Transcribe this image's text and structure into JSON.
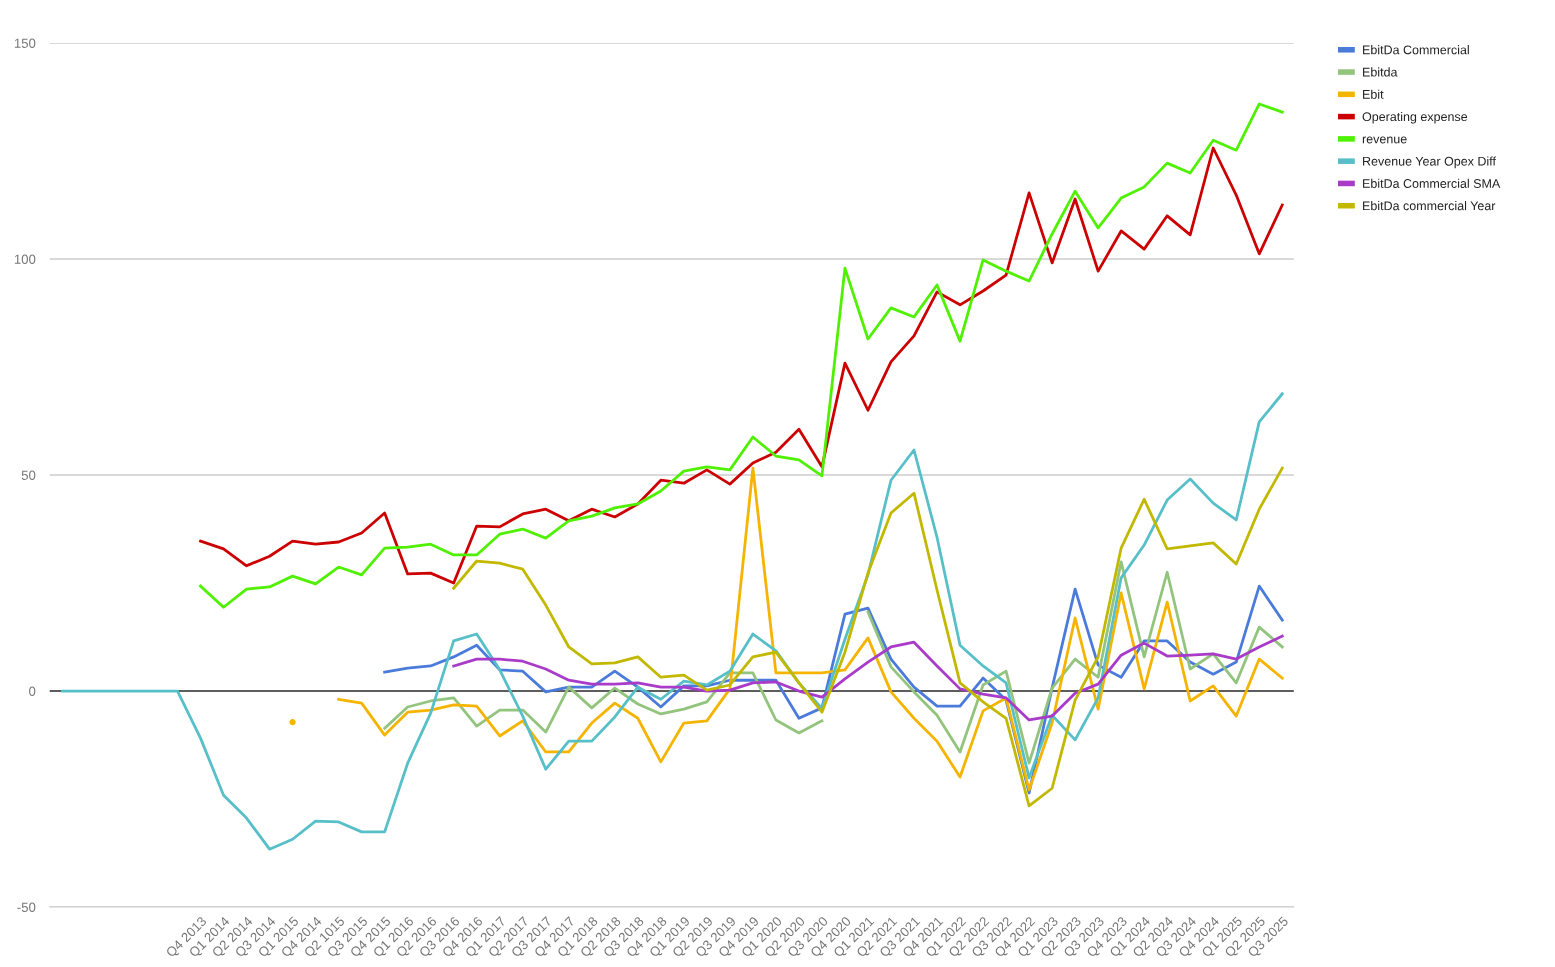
{
  "chart_data": {
    "type": "line",
    "categories": [
      null,
      null,
      null,
      null,
      null,
      null,
      "Q4 2013",
      "Q1 2014",
      "Q2 2014",
      "Q3 2014",
      "Q1 2015",
      "Q4 2014",
      "Q2 1015",
      "Q3 2015",
      "Q4 2015",
      "Q1 2016",
      "Q2 2016",
      "Q3 2016",
      "Q4 2016",
      "Q1 2017",
      "Q2 2017",
      "Q3 2017",
      "Q4 2017",
      "Q1 2018",
      "Q2 2018",
      "Q3 2018",
      "Q4 2018",
      "Q1 2019",
      "Q2 2019",
      "Q3 2019",
      "Q4 2019",
      "Q1 2020",
      "Q2 2020",
      "Q3 2020",
      "Q4 2020",
      "Q1 2021",
      "Q2 2021",
      "Q3 2021",
      "Q4 2021",
      "Q1 2022",
      "Q2 2022",
      "Q3 2022",
      "Q4 2022",
      "Q1 2023",
      "Q2 2023",
      "Q3 2023",
      "Q4 2023",
      "Q1 2024",
      "Q2 2024",
      "Q3 2024",
      "Q4 2024",
      "Q1 2025",
      "Q2 2025",
      "Q3 2025"
    ],
    "series": [
      {
        "name": "EbitDa Commercial",
        "color": "#4a7bdb",
        "values": [
          null,
          null,
          null,
          null,
          null,
          null,
          null,
          null,
          null,
          null,
          null,
          null,
          null,
          null,
          4.4,
          5.3,
          5.8,
          7.9,
          10.6,
          4.9,
          4.6,
          -0.2,
          0.9,
          0.9,
          4.6,
          0.9,
          -3.7,
          1.2,
          1.2,
          2.5,
          2.5,
          2.5,
          -6.3,
          -3.9,
          17.8,
          19.2,
          7.4,
          0.9,
          -3.5,
          -3.5,
          3,
          -2.1,
          -23.6,
          0.7,
          23.6,
          6,
          3.2,
          11.6,
          11.6,
          6.7,
          3.9,
          6.7,
          24.3,
          16.4
        ]
      },
      {
        "name": "Ebitda",
        "color": "#93c47d",
        "values": [
          null,
          null,
          null,
          null,
          null,
          null,
          null,
          null,
          null,
          null,
          null,
          null,
          null,
          null,
          -8.6,
          -3.7,
          -2.3,
          -1.6,
          -8.1,
          -4.4,
          -4.4,
          -9.5,
          0.9,
          -3.9,
          0.7,
          -3,
          -5.3,
          -4.2,
          -2.5,
          4.2,
          4.2,
          -6.7,
          -9.7,
          -6.9,
          null,
          18.3,
          5.6,
          -0.2,
          -5.6,
          -14.1,
          1.4,
          4.6,
          -16.7,
          0.7,
          7.4,
          3.2,
          29.9,
          7.9,
          27.5,
          5.1,
          8.6,
          1.9,
          14.8,
          10.2
        ]
      },
      {
        "name": "Ebit",
        "color": "#f4b400",
        "values": [
          null,
          null,
          null,
          null,
          null,
          null,
          null,
          null,
          null,
          null,
          -7.2,
          null,
          -1.9,
          -2.8,
          -10.2,
          -4.9,
          -4.4,
          -3.2,
          -3.5,
          -10.4,
          -6.9,
          -14.1,
          -14.1,
          -7.4,
          -2.8,
          -6.3,
          -16.4,
          -7.4,
          -6.9,
          0.5,
          51.6,
          4.2,
          4.2,
          4.2,
          4.9,
          12.3,
          -0.2,
          -6.3,
          -11.6,
          -19.9,
          -4.6,
          -1.6,
          -22.9,
          -7.4,
          16.9,
          -4.2,
          22.7,
          0.5,
          20.6,
          -2.3,
          1.2,
          -5.8,
          7.4,
          3
        ]
      },
      {
        "name": "Operating expense",
        "color": "#cc0000",
        "values": [
          null,
          null,
          null,
          null,
          null,
          null,
          34.7,
          32.9,
          29,
          31.2,
          34.7,
          34,
          34.5,
          36.6,
          41.2,
          27.1,
          27.3,
          25,
          38.2,
          38,
          41,
          42.1,
          39.4,
          42.1,
          40.3,
          43.3,
          48.8,
          48.1,
          51.2,
          47.9,
          52.8,
          55.3,
          60.6,
          51.9,
          75.9,
          65,
          76.2,
          82.2,
          92.4,
          89.4,
          92.6,
          96.3,
          115.3,
          99.1,
          113.9,
          97.2,
          106.5,
          102.3,
          110,
          105.6,
          125.7,
          114.8,
          101.2,
          112.5
        ]
      },
      {
        "name": "revenue",
        "color": "#4ff000",
        "values": [
          null,
          null,
          null,
          null,
          null,
          null,
          24.3,
          19.4,
          23.6,
          24.1,
          26.6,
          24.8,
          28.7,
          26.9,
          33.1,
          33.3,
          34,
          31.5,
          31.5,
          36.3,
          37.5,
          35.4,
          39.4,
          40.5,
          42.4,
          43.3,
          46.3,
          50.9,
          51.9,
          51.2,
          58.8,
          54.4,
          53.5,
          49.8,
          97.9,
          81.5,
          88.7,
          86.6,
          94,
          81,
          99.8,
          97.2,
          94.9,
          105.8,
          115.7,
          107.2,
          114.1,
          116.7,
          122.2,
          119.9,
          127.5,
          125.2,
          135.9,
          134
        ]
      },
      {
        "name": "Revenue Year Opex Diff",
        "color": "#56bfc8",
        "values": [
          0,
          0,
          0,
          0,
          0,
          0,
          -10.9,
          -24.1,
          -29.4,
          -36.6,
          -34.3,
          -30.1,
          -30.3,
          -32.6,
          -32.6,
          -16.7,
          -5.1,
          11.6,
          13.2,
          4.9,
          -5.8,
          -18.1,
          -11.6,
          -11.6,
          -6,
          0.9,
          -1.9,
          2.3,
          1.4,
          4.6,
          13.2,
          9.3,
          1.9,
          -4,
          12,
          26.9,
          48.8,
          55.8,
          35.6,
          10.6,
          5.8,
          1.9,
          -20.1,
          -5.6,
          -11.3,
          -1.6,
          26.2,
          33.8,
          44.2,
          49.1,
          43.5,
          39.6,
          62.3,
          68.8
        ]
      },
      {
        "name": "EbitDa Commercial SMA",
        "color": "#a93bc9",
        "values": [
          null,
          null,
          null,
          null,
          null,
          null,
          null,
          null,
          null,
          null,
          null,
          null,
          null,
          null,
          null,
          null,
          null,
          5.8,
          7.4,
          7.4,
          6.9,
          5.1,
          2.5,
          1.6,
          1.6,
          1.9,
          0.9,
          0.9,
          0,
          0.2,
          1.9,
          2.1,
          0,
          -1.4,
          2.8,
          6.7,
          10.2,
          11.3,
          5.8,
          0.5,
          -0.7,
          -1.6,
          -6.7,
          -5.8,
          -0.5,
          1.6,
          8.3,
          11.1,
          8.1,
          8.3,
          8.6,
          7.4,
          10.2,
          12.7
        ]
      },
      {
        "name": "EbitDa commercial Year",
        "color": "#c2b800",
        "values": [
          null,
          null,
          null,
          null,
          null,
          null,
          null,
          null,
          null,
          null,
          null,
          null,
          null,
          null,
          null,
          null,
          null,
          23.8,
          30.1,
          29.6,
          28.2,
          19.9,
          10.2,
          6.3,
          6.5,
          7.9,
          3.2,
          3.7,
          0.2,
          1.4,
          7.9,
          9,
          1.9,
          -4.9,
          9,
          27.3,
          41.2,
          45.8,
          23.4,
          1.9,
          -2.5,
          -6.3,
          -26.6,
          -22.5,
          -2.1,
          7.9,
          33.1,
          44.4,
          32.9,
          33.6,
          34.3,
          29.4,
          42.1,
          51.6
        ]
      }
    ],
    "ylim": [
      -50,
      150
    ],
    "yticks": [
      -50,
      0,
      50,
      100,
      150
    ],
    "ref_lines": [
      {
        "axis": "y",
        "value": 0,
        "color": "#333333"
      }
    ],
    "grid": "y",
    "legend": "top right",
    "marker": "none",
    "line_style": "solid"
  }
}
